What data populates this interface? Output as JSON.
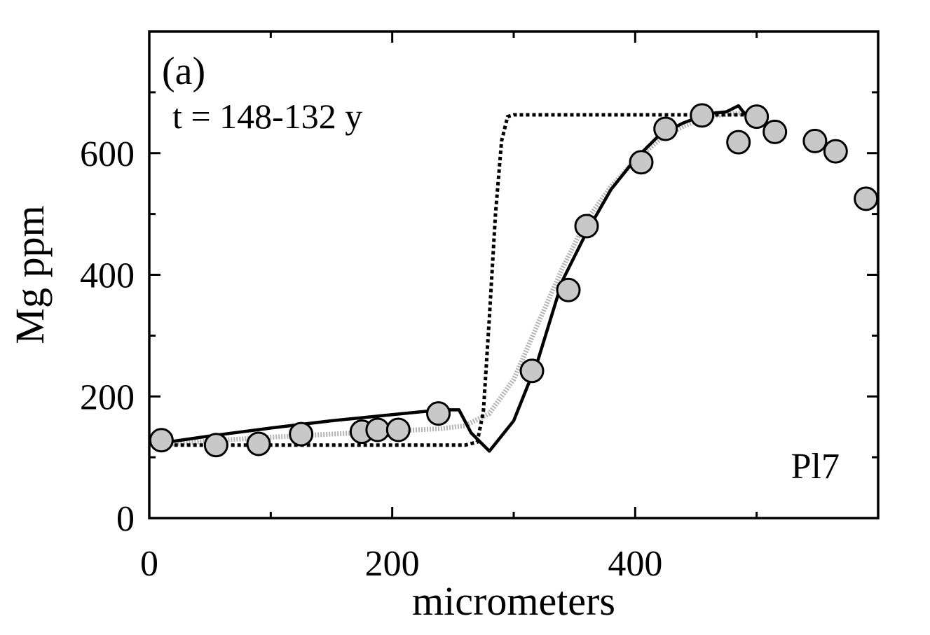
{
  "chart_data": {
    "type": "scatter",
    "title": "",
    "xlabel": "micrometers",
    "ylabel": "Mg ppm",
    "xlim": [
      0,
      600
    ],
    "ylim": [
      0,
      800
    ],
    "xticks": [
      0,
      200,
      400
    ],
    "yticks": [
      0,
      200,
      400,
      600
    ],
    "x_minor_ticks": [
      100,
      300,
      500
    ],
    "y_minor_ticks": [
      100,
      300,
      500,
      700
    ],
    "grid": false,
    "legend": "none",
    "annotations": {
      "panel": "(a)",
      "time": "t = 148-132 y",
      "sample": "Pl7"
    },
    "colors": {
      "points_fill": "#c8c8c8",
      "points_edge": "#000000",
      "solid_line": "#000000",
      "dotted_line": "#000000",
      "gray_line": "#b0b0b0"
    },
    "series": [
      {
        "kind": "points",
        "x": [
          10,
          55,
          90,
          125,
          175,
          188,
          205,
          238,
          315,
          345,
          360,
          405,
          425,
          455,
          485,
          500,
          515,
          548,
          565,
          590
        ],
        "y": [
          128,
          120,
          122,
          138,
          142,
          145,
          145,
          172,
          242,
          375,
          480,
          585,
          640,
          662,
          618,
          660,
          635,
          620,
          603,
          525
        ]
      },
      {
        "kind": "solid-line",
        "x": [
          5,
          50,
          100,
          150,
          200,
          240,
          255,
          265,
          280,
          300,
          320,
          340,
          360,
          380,
          400,
          420,
          440,
          460,
          475,
          485,
          490,
          500
        ],
        "y": [
          122,
          135,
          148,
          160,
          170,
          178,
          178,
          140,
          110,
          160,
          260,
          390,
          470,
          540,
          590,
          630,
          650,
          665,
          668,
          678,
          665,
          668
        ]
      },
      {
        "kind": "dotted-line",
        "x": [
          5,
          260,
          270,
          275,
          280,
          285,
          290,
          295,
          300,
          350,
          400,
          450,
          500
        ],
        "y": [
          120,
          120,
          125,
          175,
          330,
          500,
          620,
          660,
          663,
          663,
          663,
          663,
          663
        ]
      },
      {
        "kind": "gray-line",
        "x": [
          5,
          50,
          100,
          150,
          200,
          240,
          260,
          280,
          300,
          320,
          340,
          360,
          380,
          400,
          420,
          440,
          460,
          480,
          500
        ],
        "y": [
          120,
          127,
          133,
          138,
          143,
          147,
          152,
          172,
          228,
          320,
          410,
          490,
          545,
          588,
          622,
          645,
          660,
          665,
          667
        ]
      }
    ]
  }
}
